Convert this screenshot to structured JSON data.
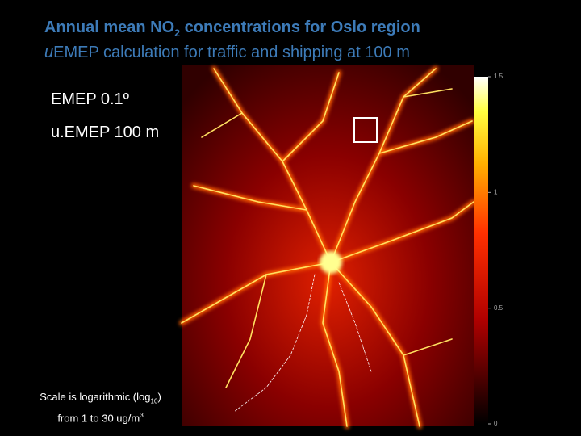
{
  "title": {
    "line1": [
      "Annual mean NO",
      "2",
      " concentrations for Oslo region"
    ],
    "line2": [
      "u",
      "EMEP calculation for traffic and shipping at 100 m"
    ]
  },
  "labels": [
    "EMEP 0.1º",
    "u.EMEP 100 m"
  ],
  "caption": {
    "line1": [
      "Scale is logarithmic (log",
      "10",
      ")"
    ],
    "line2": [
      "from 1 to 30 ug/m",
      "3"
    ]
  },
  "colorbar": {
    "lim": [
      0,
      1.5
    ],
    "ticks": [
      0,
      0.5,
      1,
      1.5
    ]
  }
}
